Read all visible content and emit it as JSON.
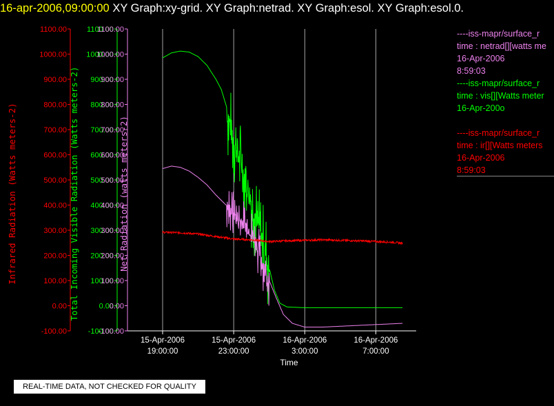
{
  "header": {
    "timestamp": "16-apr-2006,09:00:00",
    "graphs": "XY Graph:xy-grid.  XY Graph:netrad.  XY Graph:esol.  XY Graph:esol.0."
  },
  "legend": {
    "netrad": {
      "line1": "----iss-mapr/surface_r",
      "line2": "time : netrad[][watts me",
      "line3": "16-Apr-2006",
      "line4": "8:59:03",
      "color": "#ee82ee"
    },
    "vis": {
      "line1": "----iss-mapr/surface_r",
      "line2": "time : vis[][Watts meter",
      "line3": "16-Apr-200o",
      "color": "#00ff00"
    },
    "ir": {
      "line1": "----iss-mapr/surface_r",
      "line2": "time : ir[][Watts meters",
      "line3": "16-Apr-2006",
      "line4": "8:59:03",
      "color": "#ff0000"
    }
  },
  "footer": {
    "quality_note": "REAL-TIME DATA, NOT CHECKED FOR QUALITY"
  },
  "chart_data": {
    "type": "line",
    "xlabel": "Time",
    "x_ticks": [
      {
        "date": "15-Apr-2006",
        "time": "19:00:00",
        "hour": 19
      },
      {
        "date": "15-Apr-2006",
        "time": "23:00:00",
        "hour": 23
      },
      {
        "date": "16-Apr-2006",
        "time": "3:00:00",
        "hour": 27
      },
      {
        "date": "16-Apr-2006",
        "time": "7:00:00",
        "hour": 31
      }
    ],
    "xlim_hours": [
      19,
      33
    ],
    "grid": "vertical",
    "axes": [
      {
        "label": "Infrared Radiation (Watts meters-2)",
        "color": "#ff0000",
        "ylim": [
          -100,
          1100
        ],
        "ticks": [
          "-100.00",
          "0.00",
          "100.00",
          "200.00",
          "300.00",
          "400.00",
          "500.00",
          "600.00",
          "700.00",
          "800.00",
          "900.00",
          "1000.00",
          "1100.00"
        ]
      },
      {
        "label": "Total Incoming Visible Radiation (Watts meters-2)",
        "color": "#00ff00",
        "ylim": [
          -100,
          1100
        ],
        "ticks": [
          "-100.00",
          "0.00",
          "100.00",
          "200.00",
          "300.00",
          "400.00",
          "500.00",
          "600.00",
          "700.00",
          "800.00",
          "900.00",
          "1000.00",
          "1100.00"
        ]
      },
      {
        "label": "Net Radiation (watts meters-2)",
        "color": "#ee82ee",
        "ylim": [
          -100,
          1100
        ],
        "ticks": [
          "-100.00",
          "0.00",
          "100.00",
          "200.00",
          "300.00",
          "400.00",
          "500.00",
          "600.00",
          "700.00",
          "800.00",
          "900.00",
          "1000.00",
          "1100.00"
        ]
      }
    ],
    "series": [
      {
        "name": "vis",
        "color": "#00ff00",
        "points": [
          [
            19.0,
            985
          ],
          [
            19.5,
            1005
          ],
          [
            20.0,
            1012
          ],
          [
            20.5,
            1008
          ],
          [
            21.0,
            990
          ],
          [
            21.5,
            955
          ],
          [
            22.0,
            900
          ],
          [
            22.3,
            860
          ],
          [
            22.6,
            790
          ],
          [
            22.9,
            690
          ],
          [
            23.1,
            640
          ],
          [
            23.4,
            580
          ],
          [
            23.6,
            520
          ],
          [
            23.8,
            470
          ],
          [
            24.0,
            420
          ],
          [
            24.2,
            370
          ],
          [
            24.5,
            300
          ],
          [
            24.8,
            220
          ],
          [
            25.0,
            150
          ],
          [
            25.3,
            60
          ],
          [
            25.6,
            10
          ],
          [
            26.0,
            -5
          ],
          [
            27.0,
            -8
          ],
          [
            29.0,
            -8
          ],
          [
            31.0,
            -8
          ],
          [
            32.5,
            -8
          ]
        ],
        "noise": {
          "from": 22.6,
          "to": 25.0,
          "amplitude": 350
        }
      },
      {
        "name": "netrad",
        "color": "#ee82ee",
        "points": [
          [
            19.0,
            545
          ],
          [
            19.5,
            555
          ],
          [
            20.0,
            550
          ],
          [
            20.5,
            535
          ],
          [
            21.0,
            510
          ],
          [
            21.5,
            480
          ],
          [
            22.0,
            440
          ],
          [
            22.5,
            405
          ],
          [
            23.0,
            370
          ],
          [
            23.3,
            345
          ],
          [
            23.6,
            330
          ],
          [
            24.0,
            300
          ],
          [
            24.3,
            250
          ],
          [
            24.6,
            180
          ],
          [
            25.0,
            100
          ],
          [
            25.4,
            30
          ],
          [
            25.8,
            -35
          ],
          [
            26.3,
            -70
          ],
          [
            27.0,
            -85
          ],
          [
            28.0,
            -85
          ],
          [
            29.5,
            -80
          ],
          [
            31.0,
            -75
          ],
          [
            32.5,
            -70
          ]
        ],
        "noise": {
          "from": 22.6,
          "to": 25.0,
          "amplitude": 200
        }
      },
      {
        "name": "ir",
        "color": "#ff0000",
        "points": [
          [
            19.0,
            292
          ],
          [
            20.0,
            290
          ],
          [
            21.0,
            285
          ],
          [
            22.0,
            275
          ],
          [
            23.0,
            265
          ],
          [
            24.0,
            262
          ],
          [
            25.0,
            255
          ],
          [
            26.0,
            258
          ],
          [
            27.0,
            260
          ],
          [
            28.0,
            262
          ],
          [
            29.0,
            260
          ],
          [
            30.0,
            258
          ],
          [
            31.0,
            255
          ],
          [
            32.0,
            252
          ],
          [
            32.5,
            248
          ]
        ],
        "noise": {
          "from": 19.0,
          "to": 32.5,
          "amplitude": 8
        }
      }
    ]
  }
}
